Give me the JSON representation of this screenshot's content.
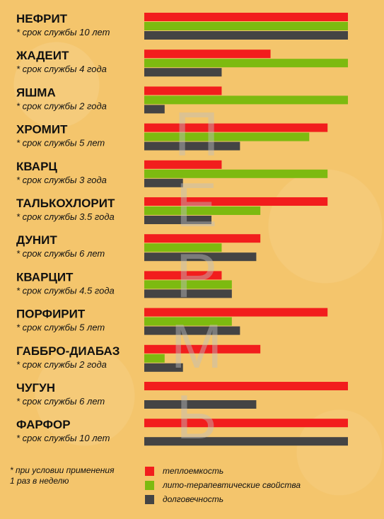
{
  "chart_data": {
    "type": "bar",
    "orientation": "horizontal",
    "title": "",
    "categories": [
      {
        "name": "НЕФРИТ",
        "note": "* срок службы 10 лет"
      },
      {
        "name": "ЖАДЕИТ",
        "note": "* срок службы 4 года"
      },
      {
        "name": "ЯШМА",
        "note": "* срок службы  2 года"
      },
      {
        "name": "ХРОМИТ",
        "note": "* срок службы  5 лет"
      },
      {
        "name": "КВАРЦ",
        "note": "* срок службы 3 года"
      },
      {
        "name": "ТАЛЬКОХЛОРИТ",
        "note": "* срок службы  3.5 года"
      },
      {
        "name": "ДУНИТ",
        "note": "* срок службы 6 лет"
      },
      {
        "name": "КВАРЦИТ",
        "note": "* срок службы 4.5 года"
      },
      {
        "name": "ПОРФИРИТ",
        "note": "* срок службы 5 лет"
      },
      {
        "name": "ГАББРО-ДИАБАЗ",
        "note": "* срок службы  2 года"
      },
      {
        "name": "ЧУГУН",
        "note": "* срок службы  6 лет"
      },
      {
        "name": "ФАРФОР",
        "note": "* срок службы 10 лет"
      }
    ],
    "series": [
      {
        "name": "теплоемкость",
        "color": "#f21d1d",
        "values": [
          1.0,
          0.62,
          0.38,
          0.9,
          0.38,
          0.9,
          0.57,
          0.38,
          0.9,
          0.57,
          1.0,
          1.0
        ]
      },
      {
        "name": "лито-терапевтические свойства",
        "color": "#7dba10",
        "values": [
          1.0,
          1.0,
          1.0,
          0.81,
          0.9,
          0.57,
          0.38,
          0.43,
          0.43,
          0.1,
          0.0,
          0.0
        ]
      },
      {
        "name": "долговечность",
        "color": "#444444",
        "values": [
          1.0,
          0.38,
          0.1,
          0.47,
          0.19,
          0.33,
          0.55,
          0.43,
          0.47,
          0.19,
          0.55,
          1.0
        ]
      }
    ],
    "xlim": [
      0,
      1
    ],
    "grid": false,
    "legend": "bottom"
  },
  "footnote": "*  при условии применения\n 1 раз в неделю",
  "watermark": "ПЕРМЬ"
}
